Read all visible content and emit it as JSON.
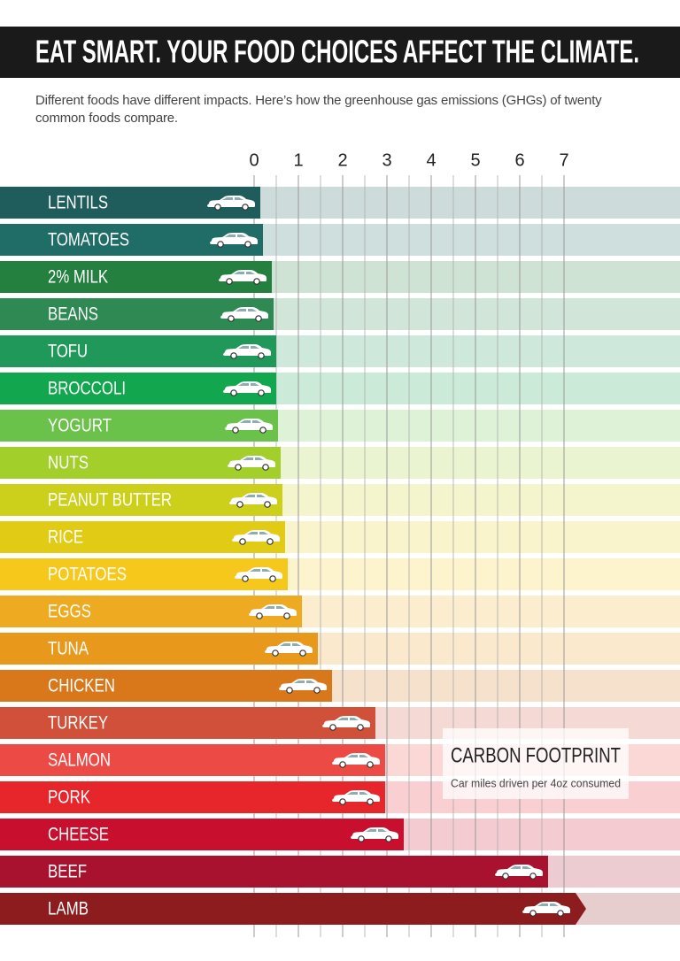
{
  "chart_data": {
    "type": "bar",
    "title": "EAT SMART. YOUR FOOD CHOICES AFFECT THE CLIMATE.",
    "subtitle": "Different foods have different impacts. Here’s how the greenhouse gas emissions (GHGs) of twenty common foods compare.",
    "legend_title": "CARBON FOOTPRINT",
    "legend_subtitle": "Car miles driven per 4oz consumed",
    "categories": [
      "LENTILS",
      "TOMATOES",
      "2% MILK",
      "BEANS",
      "TOFU",
      "BROCCOLI",
      "YOGURT",
      "NUTS",
      "PEANUT BUTTER",
      "RICE",
      "POTATOES",
      "EGGS",
      "TUNA",
      "CHICKEN",
      "TURKEY",
      "SALMON",
      "PORK",
      "CHEESE",
      "BEEF",
      "LAMB"
    ],
    "values": [
      0.14,
      0.2,
      0.4,
      0.44,
      0.5,
      0.5,
      0.54,
      0.6,
      0.64,
      0.7,
      0.76,
      1.08,
      1.44,
      1.76,
      2.74,
      2.96,
      2.96,
      3.38,
      6.64,
      7.5
    ],
    "colors": [
      "#1e5d5c",
      "#1f6d66",
      "#23803f",
      "#2e8a52",
      "#1f985a",
      "#12a64e",
      "#6bc24a",
      "#a2cf2a",
      "#ccd01a",
      "#e2cb14",
      "#f6c81c",
      "#eeab22",
      "#e8991c",
      "#d8781a",
      "#d0503a",
      "#ec4b45",
      "#e7262c",
      "#c8102e",
      "#a8122e",
      "#8d1c1f"
    ],
    "xlim": [
      0,
      7
    ],
    "xticks": [
      0,
      1,
      2,
      3,
      4,
      5,
      6,
      7
    ],
    "xminorticks": [
      0.5,
      1.5,
      2.5,
      3.5,
      4.5,
      5.5,
      6.5
    ],
    "grid": true
  }
}
